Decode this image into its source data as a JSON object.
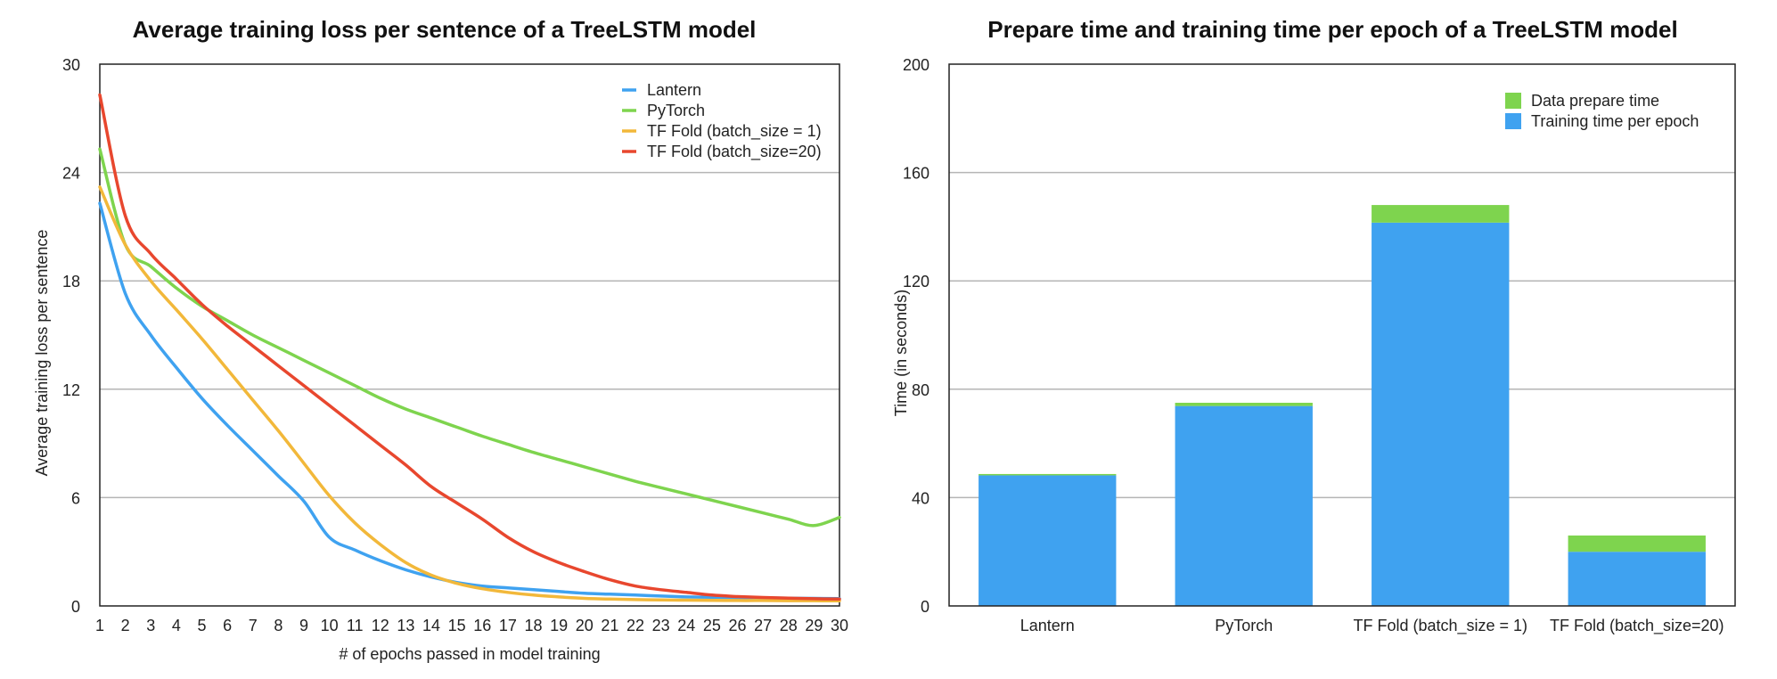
{
  "chart_data": [
    {
      "type": "line",
      "title": "Average training loss per sentence of a TreeLSTM model",
      "xlabel": "# of epochs passed in model training",
      "ylabel": "Average training loss per sentence",
      "xlim": [
        1,
        30
      ],
      "ylim": [
        0,
        30
      ],
      "x": [
        1,
        2,
        3,
        4,
        5,
        6,
        7,
        8,
        9,
        10,
        11,
        12,
        13,
        14,
        15,
        16,
        17,
        18,
        19,
        20,
        21,
        22,
        23,
        24,
        25,
        26,
        27,
        28,
        29,
        30
      ],
      "yticks": [
        0,
        6,
        12,
        18,
        24,
        30
      ],
      "grid": true,
      "legend_position": "top-right",
      "series": [
        {
          "name": "Lantern",
          "color": "#3fa2f0",
          "values": [
            22.3,
            17.3,
            15.0,
            13.2,
            11.5,
            10.0,
            8.6,
            7.2,
            5.8,
            3.8,
            3.1,
            2.5,
            2.0,
            1.6,
            1.3,
            1.1,
            1.0,
            0.9,
            0.8,
            0.7,
            0.65,
            0.6,
            0.55,
            0.5,
            0.48,
            0.46,
            0.45,
            0.43,
            0.42,
            0.41
          ]
        },
        {
          "name": "PyTorch",
          "color": "#7ed44e",
          "values": [
            25.3,
            20.0,
            18.8,
            17.6,
            16.6,
            15.8,
            15.0,
            14.3,
            13.6,
            12.9,
            12.2,
            11.5,
            10.9,
            10.4,
            9.9,
            9.4,
            8.95,
            8.5,
            8.1,
            7.7,
            7.3,
            6.9,
            6.55,
            6.2,
            5.85,
            5.5,
            5.15,
            4.8,
            4.45,
            4.9
          ]
        },
        {
          "name": "TF Fold (batch_size = 1)",
          "color": "#f2b83a",
          "values": [
            23.2,
            20.0,
            18.0,
            16.4,
            14.8,
            13.1,
            11.4,
            9.7,
            7.9,
            6.1,
            4.6,
            3.4,
            2.4,
            1.7,
            1.25,
            0.95,
            0.75,
            0.6,
            0.5,
            0.42,
            0.38,
            0.35,
            0.33,
            0.32,
            0.31,
            0.3,
            0.3,
            0.29,
            0.29,
            0.28
          ]
        },
        {
          "name": "TF Fold (batch_size=20)",
          "color": "#e8472e",
          "values": [
            28.3,
            21.6,
            19.5,
            18.1,
            16.7,
            15.5,
            14.4,
            13.3,
            12.2,
            11.1,
            10.0,
            8.9,
            7.8,
            6.6,
            5.7,
            4.8,
            3.8,
            3.0,
            2.4,
            1.9,
            1.45,
            1.1,
            0.9,
            0.75,
            0.6,
            0.52,
            0.47,
            0.43,
            0.4,
            0.38
          ]
        }
      ]
    },
    {
      "type": "bar",
      "stacked": true,
      "title": "Prepare time and training time per epoch of a TreeLSTM model",
      "xlabel": "",
      "ylabel": "Time (in seconds)",
      "ylim": [
        0,
        200
      ],
      "yticks": [
        0,
        40,
        80,
        120,
        160,
        200
      ],
      "grid": true,
      "legend_position": "top-right",
      "categories": [
        "Lantern",
        "PyTorch",
        "TF Fold (batch_size = 1)",
        "TF Fold (batch_size=20)"
      ],
      "series": [
        {
          "name": "Data prepare time",
          "color": "#7ed44e",
          "values": [
            0.5,
            1.2,
            6.5,
            6.0
          ]
        },
        {
          "name": "Training time per epoch",
          "color": "#3fa2f0",
          "values": [
            48.2,
            73.8,
            141.5,
            20.0
          ]
        }
      ],
      "legend_order": [
        "Data prepare time",
        "Training time per epoch"
      ]
    }
  ]
}
